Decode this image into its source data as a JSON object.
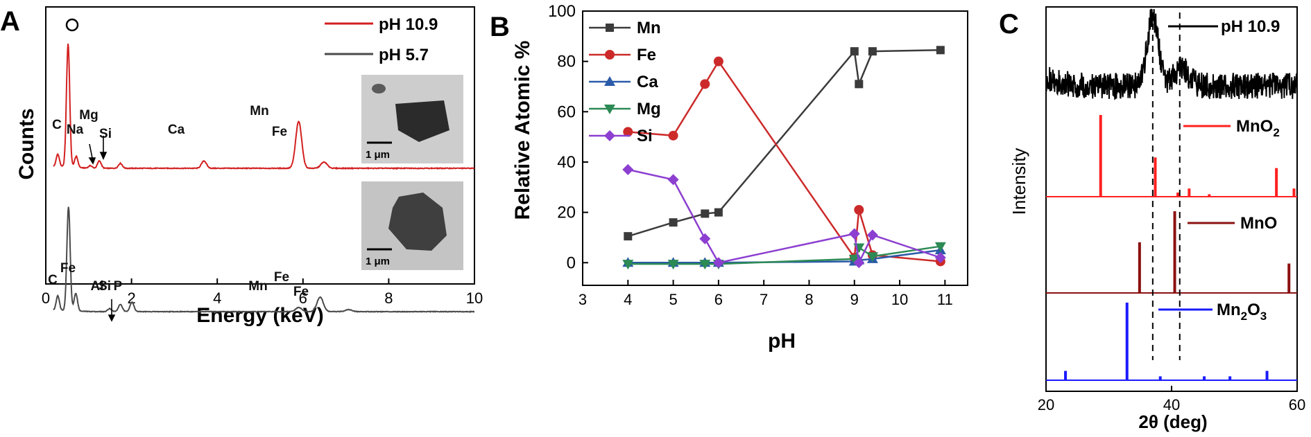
{
  "colors": {
    "ph109": "#d32020",
    "ph57": "#4a4a4a",
    "Mn": "#3b3b3b",
    "Fe": "#cc2a2a",
    "Ca": "#2a5aa8",
    "Mg": "#2c8a55",
    "Si": "#8c3fd0",
    "MnO2": "#ff2020",
    "MnO": "#8b1010",
    "Mn2O3": "#1a1aff",
    "xrd_sample": "#000000"
  },
  "chart_data": [
    {
      "panel": "A",
      "type": "line",
      "xlabel": "Energy (keV)",
      "ylabel": "Counts",
      "xlim": [
        0,
        10
      ],
      "xticks": [
        "0",
        "2",
        "4",
        "6",
        "8",
        "10"
      ],
      "legend_position": "top-right",
      "series": [
        {
          "name": "pH 10.9",
          "color_key": "ph109",
          "peaks": [
            {
              "x": 0.28,
              "h": 0.1,
              "label": "C"
            },
            {
              "x": 0.52,
              "h": 1.0,
              "label": "O"
            },
            {
              "x": 0.71,
              "h": 0.09,
              "label": ""
            },
            {
              "x": 1.04,
              "h": 0.02,
              "label": "Na"
            },
            {
              "x": 1.25,
              "h": 0.06,
              "label": "Mg"
            },
            {
              "x": 1.74,
              "h": 0.04,
              "label": "Si"
            },
            {
              "x": 3.69,
              "h": 0.06,
              "label": "Ca"
            },
            {
              "x": 5.9,
              "h": 0.38,
              "label": "Mn"
            },
            {
              "x": 6.49,
              "h": 0.05,
              "label": "Fe"
            }
          ]
        },
        {
          "name": "pH 5.7",
          "color_key": "ph57",
          "peaks": [
            {
              "x": 0.28,
              "h": 0.14,
              "label": "C"
            },
            {
              "x": 0.53,
              "h": 1.0,
              "label": ""
            },
            {
              "x": 0.7,
              "h": 0.17,
              "label": "Fe"
            },
            {
              "x": 1.49,
              "h": 0.03,
              "label": "Al"
            },
            {
              "x": 1.74,
              "h": 0.07,
              "label": "Si"
            },
            {
              "x": 2.01,
              "h": 0.09,
              "label": "P"
            },
            {
              "x": 5.9,
              "h": 0.04,
              "label": "Mn"
            },
            {
              "x": 6.4,
              "h": 0.14,
              "label": "Fe"
            },
            {
              "x": 7.06,
              "h": 0.02,
              "label": "Fe"
            }
          ]
        }
      ],
      "annotations": {
        "o_marker": "O",
        "scale_bar_top": "1 μm",
        "scale_bar_bottom": "1 μm"
      }
    },
    {
      "panel": "B",
      "type": "line",
      "xlabel": "pH",
      "ylabel": "Relative Atomic %",
      "xlim": [
        3,
        11.5
      ],
      "ylim": [
        -9,
        100
      ],
      "xticks": [
        3,
        4,
        5,
        6,
        7,
        8,
        9,
        10,
        11
      ],
      "yticks": [
        0,
        20,
        40,
        60,
        80,
        100
      ],
      "legend_position": "top-left",
      "x": [
        4,
        5,
        5.7,
        6,
        9,
        9.1,
        9.4,
        10.9
      ],
      "series": [
        {
          "name": "Mn",
          "marker": "square",
          "color_key": "Mn",
          "values": [
            10.5,
            16,
            19.5,
            20,
            84,
            71,
            84,
            84.5
          ]
        },
        {
          "name": "Fe",
          "marker": "circle",
          "color_key": "Fe",
          "values": [
            52,
            50.5,
            71,
            80,
            2,
            21,
            3,
            0.5
          ]
        },
        {
          "name": "Ca",
          "marker": "triangle-up",
          "color_key": "Ca",
          "values": [
            0,
            0,
            0,
            0,
            0.5,
            1,
            1.5,
            5
          ]
        },
        {
          "name": "Mg",
          "marker": "triangle-down",
          "color_key": "Mg",
          "values": [
            -0.5,
            -0.5,
            -0.5,
            -0.5,
            1.5,
            6,
            2.5,
            6.5
          ]
        },
        {
          "name": "Si",
          "marker": "diamond",
          "color_key": "Si",
          "values": [
            37,
            33,
            9.5,
            0,
            11.5,
            0,
            11,
            2
          ]
        }
      ]
    },
    {
      "panel": "C",
      "type": "line",
      "xlabel": "2θ (deg)",
      "ylabel": "Intensity",
      "xlim": [
        20,
        60
      ],
      "xticks": [
        "20",
        "40",
        "60"
      ],
      "dashed_lines_x": [
        37,
        41.3
      ],
      "series": [
        {
          "name": "pH 10.9",
          "color_key": "xrd_sample",
          "broad_peaks": [
            {
              "x": 37,
              "h": 1.0,
              "w": 0.9
            },
            {
              "x": 41.5,
              "h": 0.25,
              "w": 1.2
            }
          ]
        },
        {
          "name": "MnO₂",
          "color_key": "MnO2",
          "sticks": [
            [
              28.7,
              1.0
            ],
            [
              37.4,
              0.48
            ],
            [
              41.0,
              0.05
            ],
            [
              42.8,
              0.1
            ],
            [
              46.0,
              0.03
            ],
            [
              56.7,
              0.35
            ],
            [
              59.5,
              0.1
            ]
          ]
        },
        {
          "name": "MnO",
          "color_key": "MnO",
          "sticks": [
            [
              34.9,
              0.62
            ],
            [
              40.5,
              1.0
            ],
            [
              58.7,
              0.36
            ]
          ]
        },
        {
          "name": "Mn₂O₃",
          "color_key": "Mn2O3",
          "sticks": [
            [
              23.1,
              0.12
            ],
            [
              32.9,
              1.0
            ],
            [
              38.2,
              0.05
            ],
            [
              45.2,
              0.05
            ],
            [
              49.3,
              0.05
            ],
            [
              55.2,
              0.12
            ]
          ]
        }
      ]
    }
  ],
  "labels": {
    "panel_a": "A",
    "panel_b": "B",
    "panel_c": "C",
    "legend_a1": "pH 10.9",
    "legend_a2": "pH 5.7",
    "c_label_sample": "pH 10.9",
    "c_label_mno2_base": "MnO",
    "c_label_mno2_sub": "2",
    "c_label_mno": "MnO",
    "c_label_mn2o3_base": "Mn",
    "c_label_mn2o3_sub1": "2",
    "c_label_mn2o3_mid": "O",
    "c_label_mn2o3_sub2": "3"
  }
}
